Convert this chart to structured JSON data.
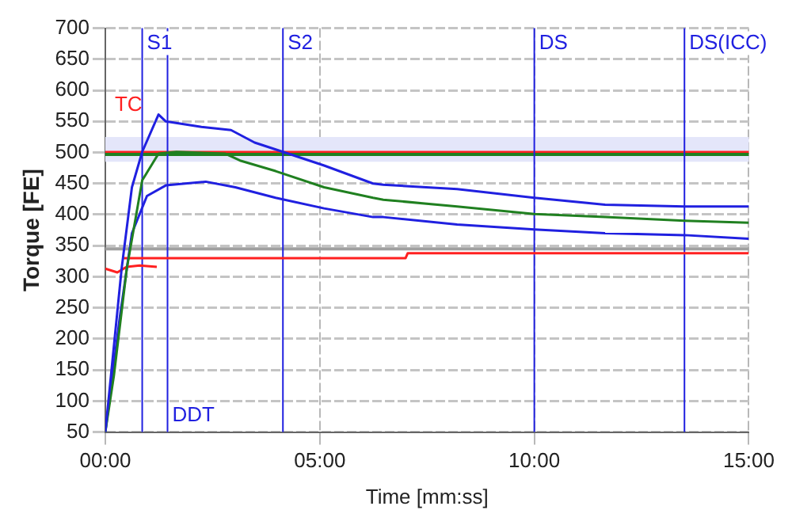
{
  "chart_data": {
    "type": "line",
    "xlabel": "Time [mm:ss]",
    "ylabel": "Torque [FE]",
    "xlim": [
      0,
      15
    ],
    "xticks": [
      {
        "value": 0,
        "label": "00:00"
      },
      {
        "value": 5,
        "label": "05:00"
      },
      {
        "value": 10,
        "label": "10:00"
      },
      {
        "value": 15,
        "label": "15:00"
      }
    ],
    "ylim": [
      50,
      700
    ],
    "yticks": [
      50,
      100,
      150,
      200,
      250,
      300,
      350,
      400,
      450,
      500,
      550,
      600,
      650,
      700
    ],
    "grid": true,
    "legend": false,
    "marker": "none",
    "line_style": "solid",
    "series": [
      {
        "color": "#2020e0",
        "x": [
          0,
          0.38,
          0.62,
          0.86,
          1.24,
          1.41,
          2.24,
          2.93,
          3.48,
          4.14,
          5.1,
          6.24,
          6.48,
          8.2,
          10,
          11.65,
          13.5,
          15
        ],
        "values": [
          50,
          313,
          444,
          501,
          561,
          550,
          541,
          536,
          516,
          501,
          479,
          450,
          448,
          441,
          427,
          416,
          413,
          413
        ]
      },
      {
        "color": "#208020",
        "x": [
          0,
          0.2,
          0.5,
          0.86,
          1.24,
          1.66,
          2.8,
          3.14,
          3.97,
          5.1,
          6.24,
          6.48,
          8.2,
          10,
          11.65,
          13.5,
          15
        ],
        "values": [
          50,
          141,
          313,
          455,
          498,
          501,
          498,
          487,
          470,
          444,
          427,
          424,
          413,
          401,
          396,
          390,
          387
        ]
      },
      {
        "color": "#2020e0",
        "x": [
          0,
          0.34,
          0.62,
          0.97,
          1.41,
          2.34,
          3.03,
          3.97,
          5.1,
          6.24,
          6.48,
          8.2,
          10,
          11.65,
          13.5,
          15
        ],
        "values": [
          50,
          236,
          370,
          430,
          447,
          453,
          444,
          427,
          410,
          396,
          396,
          384,
          376,
          370,
          367,
          361
        ]
      },
      {
        "color": "#ff2020",
        "x": [
          0,
          0.28,
          0.5,
          0.8,
          1.2
        ],
        "values": [
          313,
          307,
          316,
          318,
          316
        ]
      },
      {
        "color": "#ff2020",
        "x": [
          0.4,
          7,
          7.05,
          15
        ],
        "values": [
          330,
          330,
          338,
          338
        ]
      }
    ],
    "bands": [
      {
        "axis": "y",
        "from": 485,
        "to": 525,
        "color": "#e4e6fa"
      }
    ],
    "ref_lines": [
      {
        "axis": "y",
        "value": 500,
        "color": "#ff2020"
      },
      {
        "axis": "y",
        "value": 497,
        "color": "#208020"
      },
      {
        "axis": "y",
        "value": 345,
        "color": "#a0a0a0"
      },
      {
        "axis": "x",
        "value": 0.86,
        "label": "S1",
        "color": "#2020e0"
      },
      {
        "axis": "x",
        "value": 4.14,
        "label": "S2",
        "color": "#2020e0"
      },
      {
        "axis": "x",
        "value": 1.45,
        "label": "DDT",
        "color": "#2020e0"
      },
      {
        "axis": "x",
        "value": 10,
        "label": "DS",
        "color": "#2020e0"
      },
      {
        "axis": "x",
        "value": 13.5,
        "label": "DS(ICC)",
        "color": "#2020e0"
      }
    ],
    "annotations": [
      "TC"
    ]
  }
}
